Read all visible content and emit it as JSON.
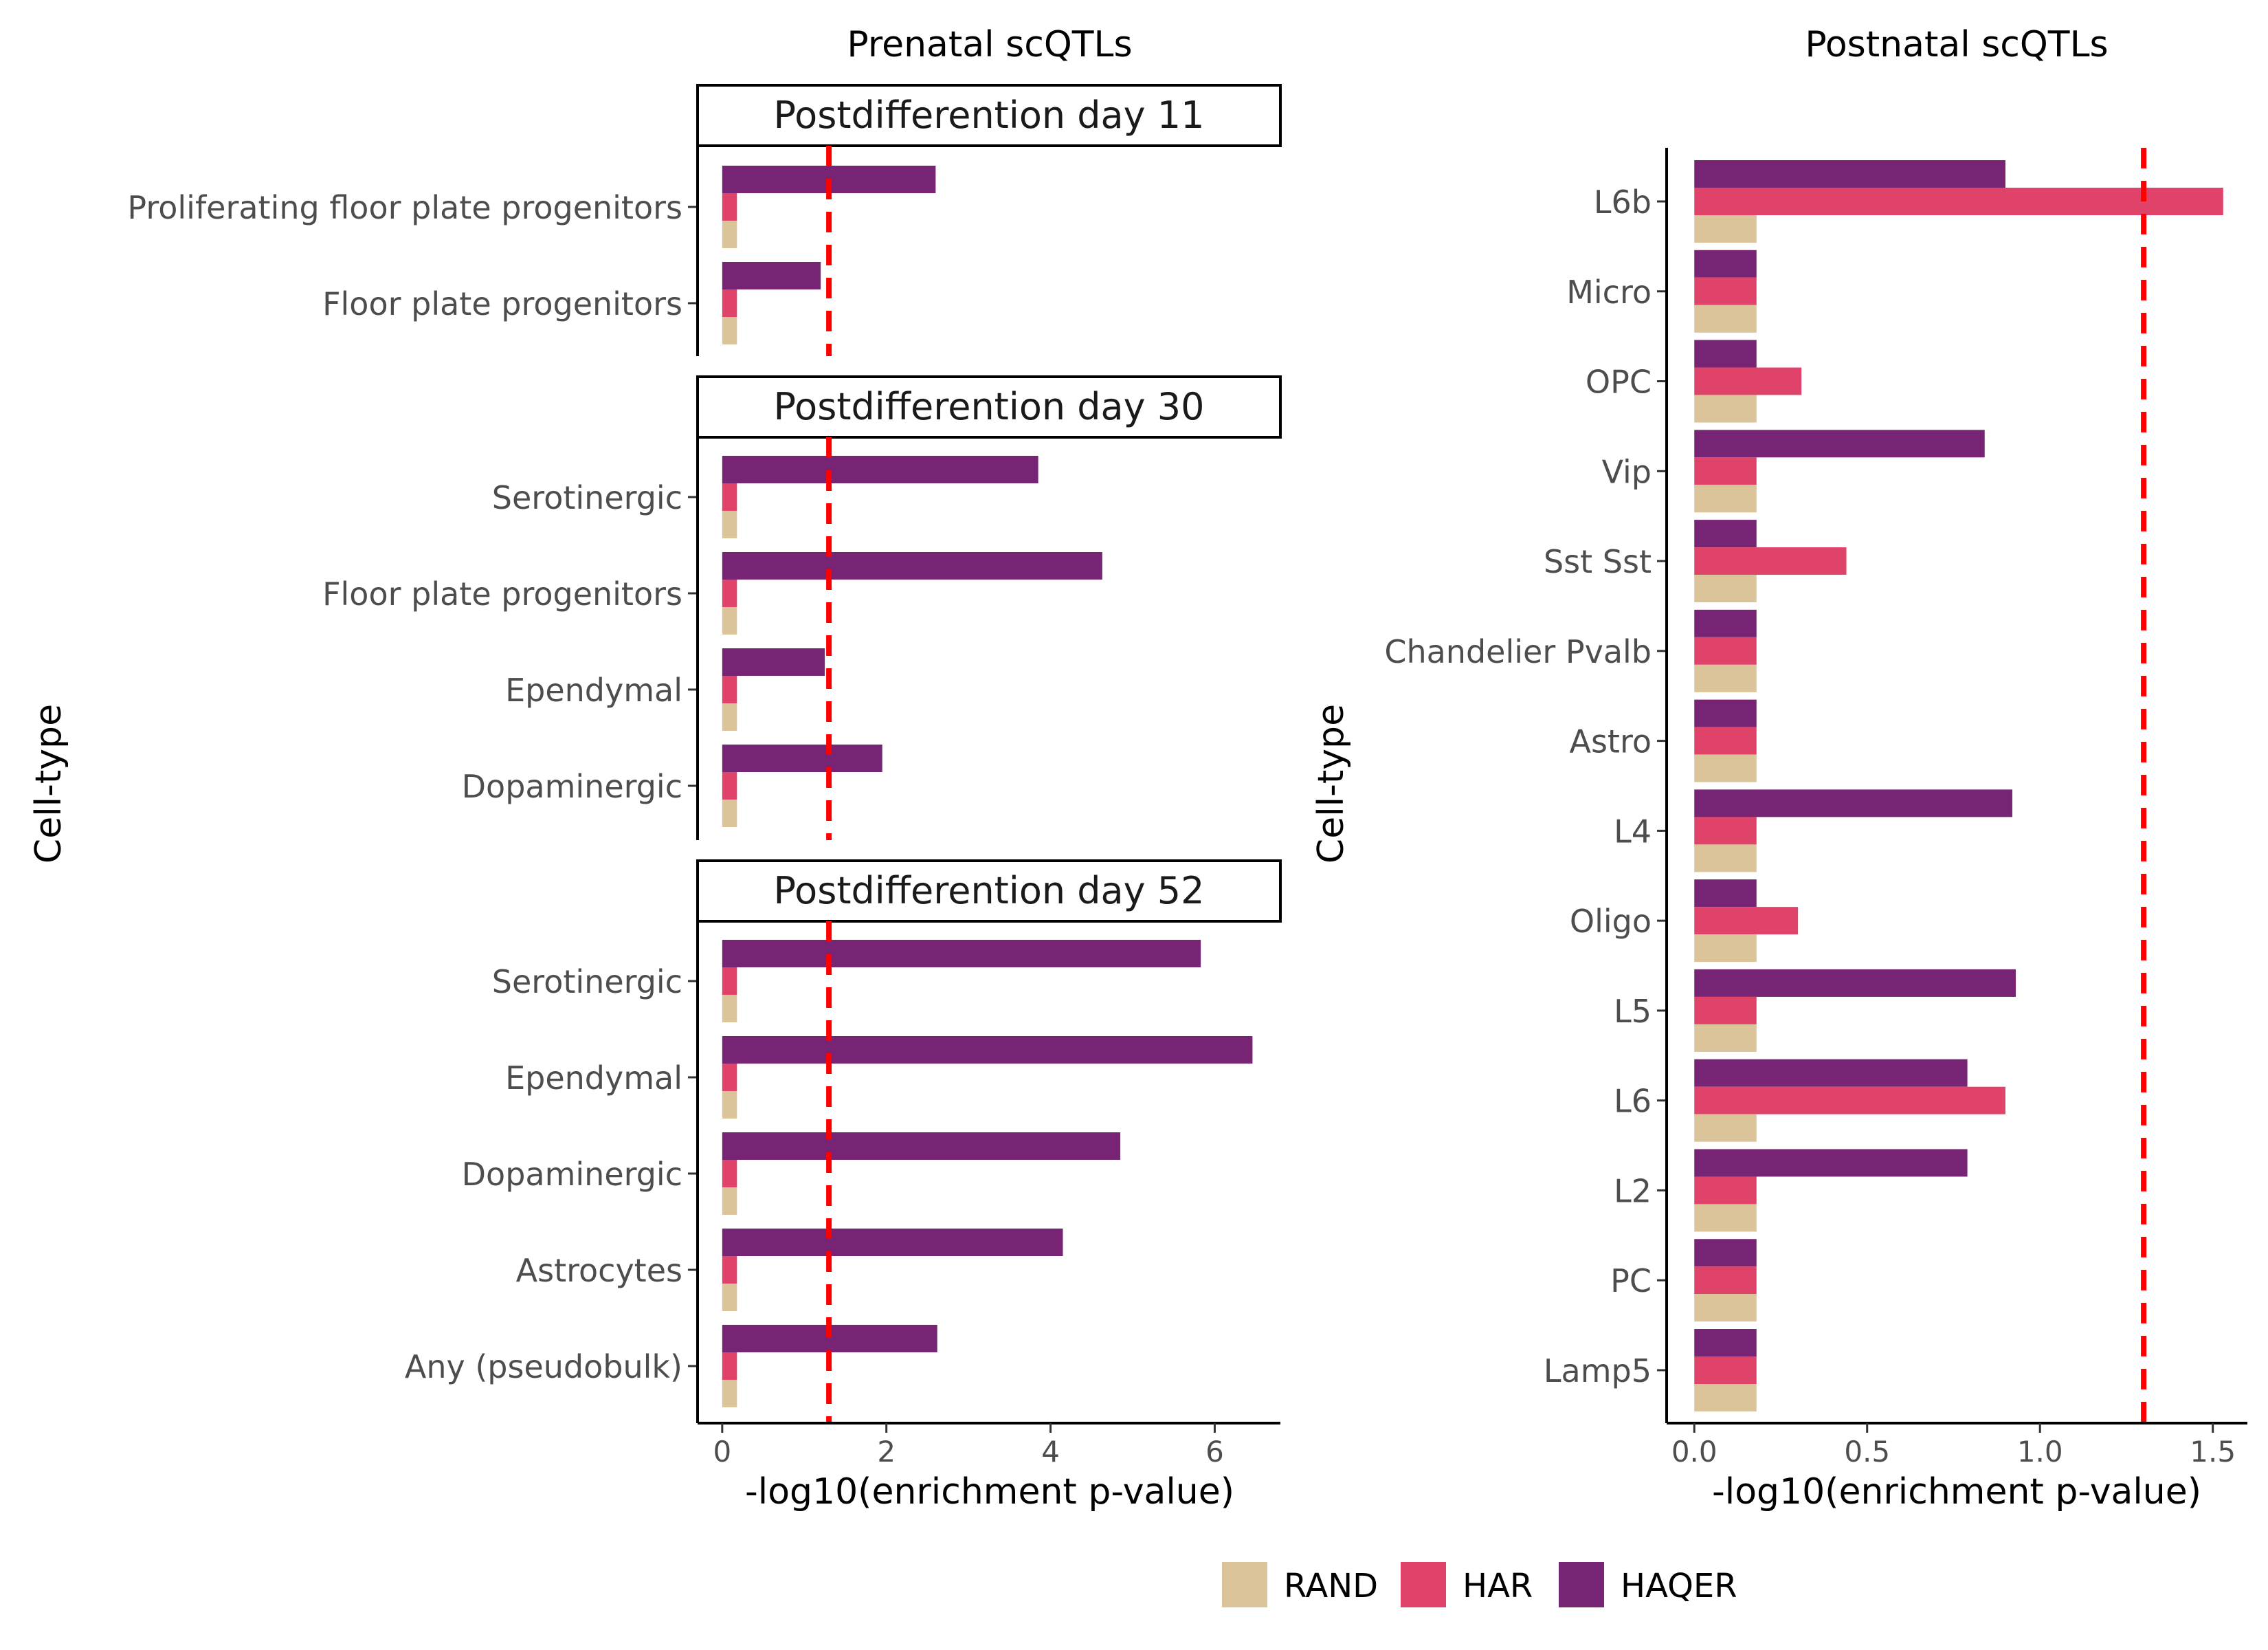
{
  "colors": {
    "RAND": "#dbc39a",
    "HAR": "#e0436a",
    "HAQER": "#772475",
    "threshold": "#ff0000"
  },
  "legend": {
    "placement": "bottom",
    "items": [
      {
        "key": "RAND",
        "label": "RAND"
      },
      {
        "key": "HAR",
        "label": "HAR"
      },
      {
        "key": "HAQER",
        "label": "HAQER"
      }
    ]
  },
  "chart_data": [
    {
      "type": "bar",
      "orientation": "horizontal",
      "title": "Prenatal scQTLs",
      "xlabel": "-log10(enrichment p-value)",
      "ylabel": "Cell-type",
      "xlim": [
        -0.3,
        6.8
      ],
      "xticks": [
        0,
        2,
        4,
        6
      ],
      "threshold": 1.3,
      "grid": false,
      "series_order": [
        "HAQER",
        "HAR",
        "RAND"
      ],
      "facets": [
        {
          "strip": "Postdifferention day 11",
          "categories": [
            "Proliferating floor plate progenitors",
            "Floor plate progenitors"
          ],
          "series": [
            {
              "name": "HAQER",
              "values": [
                2.6,
                1.2
              ]
            },
            {
              "name": "HAR",
              "values": [
                0.18,
                0.18
              ]
            },
            {
              "name": "RAND",
              "values": [
                0.18,
                0.18
              ]
            }
          ]
        },
        {
          "strip": "Postdifferention day 30",
          "categories": [
            "Serotinergic",
            "Floor plate progenitors",
            "Ependymal",
            "Dopaminergic"
          ],
          "series": [
            {
              "name": "HAQER",
              "values": [
                3.85,
                4.63,
                1.25,
                1.95
              ]
            },
            {
              "name": "HAR",
              "values": [
                0.18,
                0.18,
                0.18,
                0.18
              ]
            },
            {
              "name": "RAND",
              "values": [
                0.18,
                0.18,
                0.18,
                0.18
              ]
            }
          ]
        },
        {
          "strip": "Postdifferention day 52",
          "categories": [
            "Serotinergic",
            "Ependymal",
            "Dopaminergic",
            "Astrocytes",
            "Any (pseudobulk)"
          ],
          "series": [
            {
              "name": "HAQER",
              "values": [
                5.83,
                6.46,
                4.85,
                4.15,
                2.62
              ]
            },
            {
              "name": "HAR",
              "values": [
                0.18,
                0.18,
                0.18,
                0.18,
                0.18
              ]
            },
            {
              "name": "RAND",
              "values": [
                0.18,
                0.18,
                0.18,
                0.18,
                0.18
              ]
            }
          ]
        }
      ]
    },
    {
      "type": "bar",
      "orientation": "horizontal",
      "title": "Postnatal scQTLs",
      "xlabel": "-log10(enrichment p-value)",
      "ylabel": "Cell-type",
      "xlim": [
        -0.08,
        1.6
      ],
      "xticks": [
        0.0,
        0.5,
        1.0,
        1.5
      ],
      "xtick_labels": [
        "0.0",
        "0.5",
        "1.0",
        "1.5"
      ],
      "threshold": 1.3,
      "grid": false,
      "series_order": [
        "HAQER",
        "HAR",
        "RAND"
      ],
      "categories": [
        "L6b",
        "Micro",
        "OPC",
        "Vip",
        "Sst Sst",
        "Chandelier Pvalb",
        "Astro",
        "L4",
        "Oligo",
        "L5",
        "L6",
        "L2",
        "PC",
        "Lamp5"
      ],
      "series": [
        {
          "name": "HAQER",
          "values": [
            0.9,
            0.18,
            0.18,
            0.84,
            0.18,
            0.18,
            0.18,
            0.92,
            0.18,
            0.93,
            0.79,
            0.79,
            0.18,
            0.18
          ]
        },
        {
          "name": "HAR",
          "values": [
            1.53,
            0.18,
            0.31,
            0.18,
            0.44,
            0.18,
            0.18,
            0.18,
            0.3,
            0.18,
            0.9,
            0.18,
            0.18,
            0.18
          ]
        },
        {
          "name": "RAND",
          "values": [
            0.18,
            0.18,
            0.18,
            0.18,
            0.18,
            0.18,
            0.18,
            0.18,
            0.18,
            0.18,
            0.18,
            0.18,
            0.18,
            0.18
          ]
        }
      ]
    }
  ]
}
